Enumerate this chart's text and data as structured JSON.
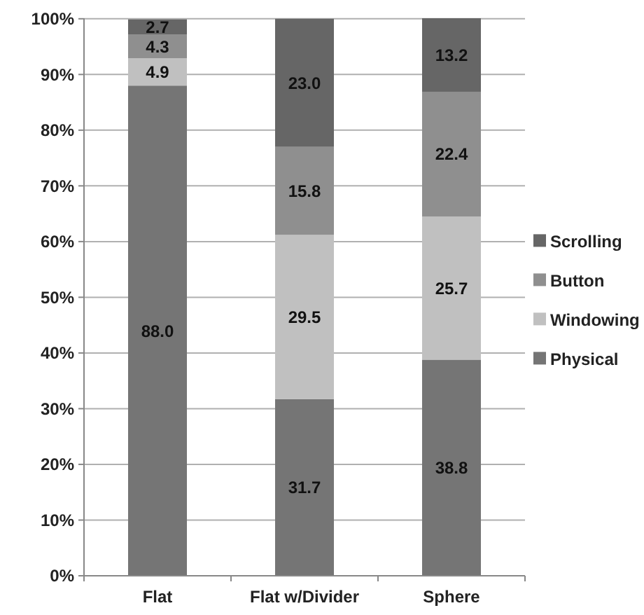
{
  "chart_data": {
    "type": "bar",
    "stacked": true,
    "categories": [
      "Flat",
      "Flat w/Divider",
      "Sphere"
    ],
    "series": [
      {
        "name": "Physical",
        "color": "#757575",
        "values": [
          88.0,
          31.7,
          38.8
        ],
        "value_labels": [
          "88.0",
          "31.7",
          "38.8"
        ]
      },
      {
        "name": "Windowing",
        "color": "#c0c0c0",
        "values": [
          4.9,
          29.5,
          25.7
        ],
        "value_labels": [
          "4.9",
          "29.5",
          "25.7"
        ]
      },
      {
        "name": "Button",
        "color": "#8f8f8f",
        "values": [
          4.3,
          15.8,
          22.4
        ],
        "value_labels": [
          "4.3",
          "15.8",
          "22.4"
        ]
      },
      {
        "name": "Scrolling",
        "color": "#666666",
        "values": [
          2.7,
          23.0,
          13.2
        ],
        "value_labels": [
          "2.7",
          "23.0",
          "13.2"
        ]
      }
    ],
    "ylim": [
      0,
      100.1
    ],
    "yticks": [
      {
        "value": 0,
        "label": "0%"
      },
      {
        "value": 10,
        "label": "10%"
      },
      {
        "value": 20,
        "label": "20%"
      },
      {
        "value": 30,
        "label": "30%"
      },
      {
        "value": 40,
        "label": "40%"
      },
      {
        "value": 50,
        "label": "50%"
      },
      {
        "value": 60,
        "label": "60%"
      },
      {
        "value": 70,
        "label": "70%"
      },
      {
        "value": 80,
        "label": "80%"
      },
      {
        "value": 90,
        "label": "90%"
      },
      {
        "value": 100,
        "label": "100%"
      }
    ],
    "grid": "y",
    "legend": "right"
  }
}
